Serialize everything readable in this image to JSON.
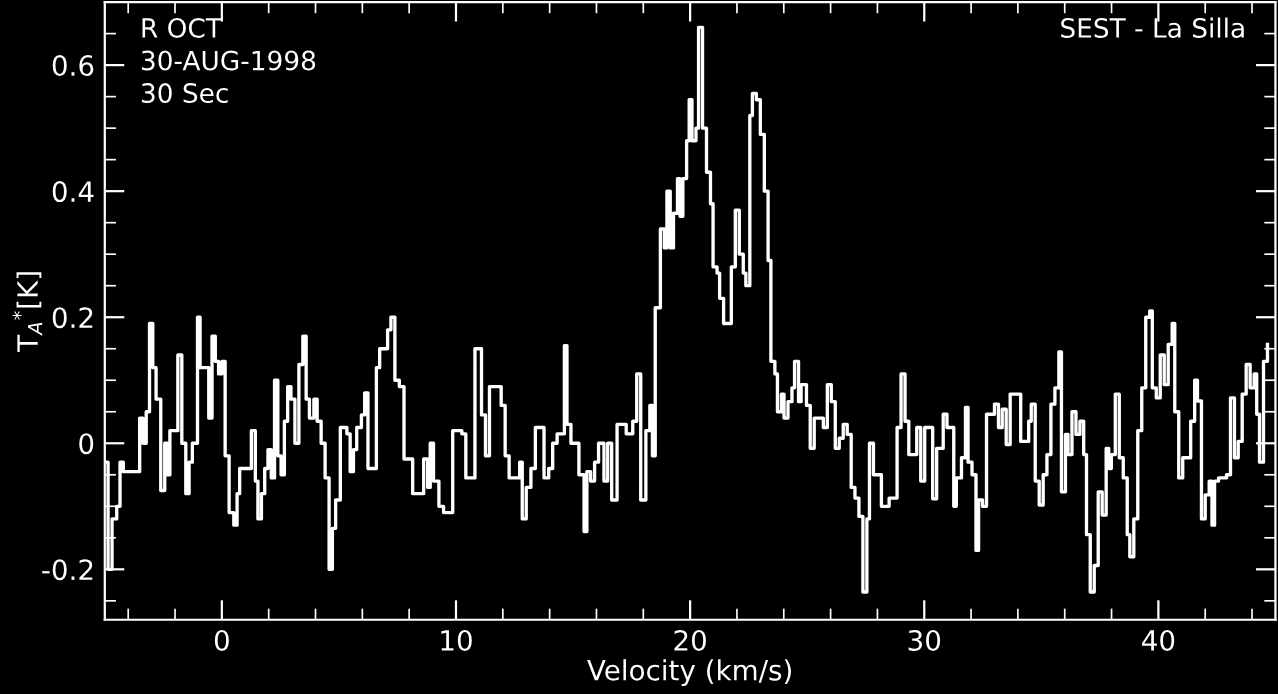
{
  "chart_data": {
    "type": "step",
    "xlabel": "Velocity (km/s)",
    "ylabel": "T$_{A}$$^{*}$[K]",
    "annotations": [
      "R OCT\n30-AUG-1998\n30 Sec",
      "SEST - La Silla"
    ],
    "xlim": [
      -5,
      45
    ],
    "ylim": [
      -0.28,
      0.7
    ],
    "xticks": [
      0,
      10,
      20,
      30,
      40
    ],
    "yticks": [
      -0.2,
      0,
      0.2,
      0.4,
      0.6
    ],
    "grid": false,
    "series": [
      {
        "color": "#ffffff",
        "x": [
          -4.97,
          -4.86,
          -4.69,
          -4.49,
          -4.35,
          -4.21,
          -3.51,
          -3.37,
          -3.23,
          -3.09,
          -2.95,
          -2.81,
          -2.61,
          -2.44,
          -2.33,
          -2.22,
          -1.88,
          -1.71,
          -1.54,
          -1.4,
          -1.26,
          -1.04,
          -0.93,
          -0.56,
          -0.42,
          -0.28,
          -0.14,
          0,
          0.14,
          0.31,
          0.51,
          0.65,
          0.76,
          1.26,
          1.43,
          1.54,
          1.69,
          1.83,
          1.97,
          2.11,
          2.25,
          2.39,
          2.53,
          2.67,
          2.81,
          2.95,
          3.12,
          3.29,
          3.46,
          3.6,
          3.74,
          3.93,
          4.07,
          4.24,
          4.41,
          4.58,
          4.72,
          4.86,
          5.06,
          5.34,
          5.48,
          5.62,
          5.76,
          5.96,
          6.1,
          6.24,
          6.6,
          6.74,
          7.08,
          7.22,
          7.39,
          7.58,
          7.78,
          8.15,
          8.48,
          8.62,
          8.79,
          8.9,
          9.04,
          9.27,
          9.47,
          9.69,
          9.86,
          10.25,
          10.42,
          10.81,
          11.09,
          11.26,
          11.43,
          11.93,
          12.1,
          12.27,
          12.72,
          12.83,
          13.0,
          13.2,
          13.39,
          13.76,
          13.96,
          14.13,
          14.32,
          14.63,
          14.74,
          14.91,
          15.25,
          15.47,
          15.59,
          15.75,
          15.92,
          16.09,
          16.32,
          16.48,
          16.65,
          16.88,
          17.27,
          17.55,
          17.72,
          17.89,
          18.11,
          18.28,
          18.39,
          18.51,
          18.73,
          18.9,
          19.01,
          19.15,
          19.29,
          19.46,
          19.57,
          19.69,
          19.85,
          19.96,
          20.08,
          20.25,
          20.36,
          20.53,
          20.7,
          20.87,
          20.98,
          21.15,
          21.26,
          21.43,
          21.76,
          21.93,
          22.1,
          22.27,
          22.38,
          22.55,
          22.66,
          22.83,
          23.0,
          23.17,
          23.33,
          23.45,
          23.62,
          23.73,
          23.9,
          24.01,
          24.18,
          24.35,
          24.46,
          24.63,
          24.74,
          24.97,
          25.13,
          25.3,
          25.69,
          25.86,
          26.03,
          26.2,
          26.37,
          26.54,
          26.71,
          26.88,
          27.04,
          27.21,
          27.38,
          27.55,
          27.66,
          27.83,
          28.17,
          28.5,
          28.84,
          29.01,
          29.18,
          29.34,
          29.68,
          29.85,
          30.02,
          30.36,
          30.53,
          30.81,
          30.97,
          31.26,
          31.37,
          31.59,
          31.76,
          31.87,
          32.04,
          32.21,
          32.32,
          32.49,
          32.66,
          33.0,
          33.17,
          33.33,
          33.5,
          33.67,
          34.01,
          34.12,
          34.46,
          34.57,
          34.74,
          34.91,
          35.08,
          35.24,
          35.41,
          35.58,
          35.75,
          35.86,
          36.03,
          36.14,
          36.31,
          36.48,
          36.65,
          36.81,
          36.93,
          37.09,
          37.26,
          37.43,
          37.6,
          37.77,
          37.88,
          37.99,
          38.16,
          38.33,
          38.5,
          38.67,
          38.78,
          38.95,
          39.12,
          39.29,
          39.46,
          39.63,
          39.74,
          39.91,
          40.08,
          40.25,
          40.42,
          40.59,
          40.7,
          40.87,
          41.04,
          41.38,
          41.55,
          41.67,
          41.84,
          42.0,
          42.17,
          42.29,
          42.4,
          42.57,
          42.91,
          43.08,
          43.25,
          43.41,
          43.58,
          43.75,
          43.92,
          44.09,
          44.2,
          44.32,
          44.49,
          44.66
        ],
        "values": [
          -0.03,
          -0.2,
          -0.12,
          -0.1,
          -0.03,
          -0.045,
          0.04,
          0,
          0.05,
          0.19,
          0.12,
          0.07,
          -0.075,
          0,
          -0.05,
          0.02,
          0.14,
          0,
          -0.08,
          -0.03,
          0,
          0.2,
          0.12,
          0.04,
          0.17,
          0.13,
          0.11,
          0.13,
          -0.02,
          -0.11,
          -0.13,
          -0.08,
          -0.04,
          0.02,
          -0.06,
          -0.12,
          -0.08,
          -0.04,
          -0.01,
          -0.055,
          0.1,
          -0.02,
          -0.05,
          0.035,
          0.09,
          0.07,
          0,
          0.125,
          0.17,
          0.07,
          0.04,
          0.07,
          0.035,
          0,
          -0.055,
          -0.2,
          -0.135,
          -0.09,
          0.025,
          0.015,
          -0.045,
          -0.01,
          0.025,
          0.045,
          0.08,
          -0.04,
          0.12,
          0.15,
          0.18,
          0.2,
          0.1,
          0.09,
          -0.025,
          -0.08,
          -0.08,
          -0.025,
          -0.07,
          0,
          -0.06,
          -0.1,
          -0.11,
          -0.11,
          0.02,
          0.015,
          -0.055,
          0.15,
          0.045,
          -0.02,
          0.09,
          0.06,
          -0.02,
          -0.055,
          -0.03,
          -0.12,
          -0.07,
          -0.04,
          0.025,
          -0.055,
          -0.04,
          0,
          0.015,
          0.155,
          0.03,
          0,
          -0.05,
          -0.14,
          -0.045,
          -0.06,
          -0.03,
          0,
          -0.06,
          0,
          -0.09,
          0.03,
          0.015,
          0.035,
          0.11,
          -0.09,
          0.02,
          0.06,
          -0.02,
          0.215,
          0.34,
          0.31,
          0.4,
          0.31,
          0.365,
          0.42,
          0.36,
          0.42,
          0.48,
          0.545,
          0.48,
          0.5,
          0.66,
          0.5,
          0.43,
          0.38,
          0.28,
          0.27,
          0.23,
          0.19,
          0.28,
          0.37,
          0.3,
          0.27,
          0.25,
          0.52,
          0.555,
          0.545,
          0.49,
          0.4,
          0.29,
          0.13,
          0.11,
          0.05,
          0.078,
          0.04,
          0.066,
          0.088,
          0.13,
          0.066,
          0.093,
          0.06,
          -0.008,
          0.04,
          0.025,
          0.093,
          0.066,
          -0.008,
          0.008,
          0.03,
          0.014,
          -0.07,
          -0.087,
          -0.116,
          -0.236,
          -0.12,
          0,
          -0.05,
          -0.1,
          -0.087,
          0.025,
          0.11,
          0.035,
          -0.018,
          0.025,
          -0.06,
          0.025,
          -0.088,
          -0.008,
          0.046,
          0.025,
          -0.1,
          -0.055,
          -0.023,
          0.057,
          -0.03,
          -0.05,
          -0.17,
          -0.09,
          -0.1,
          0.046,
          0.062,
          0.025,
          0.054,
          -0.002,
          0.078,
          0.078,
          0.003,
          0.035,
          0.062,
          -0.06,
          -0.098,
          -0.05,
          -0.018,
          0.062,
          0.088,
          0.145,
          -0.077,
          0.014,
          -0.018,
          0.05,
          0.014,
          0.035,
          -0.018,
          -0.145,
          -0.236,
          -0.194,
          -0.077,
          -0.114,
          -0.008,
          -0.04,
          -0.018,
          0.078,
          -0.023,
          -0.055,
          -0.145,
          -0.18,
          -0.12,
          0.02,
          0.088,
          0.2,
          0.21,
          0.088,
          0.072,
          0.14,
          0.093,
          0.157,
          0.19,
          0.05,
          -0.055,
          -0.023,
          0.035,
          0.1,
          0.067,
          -0.12,
          -0.082,
          -0.06,
          -0.13,
          -0.06,
          -0.055,
          -0.05,
          0.072,
          -0.023,
          0.003,
          0.078,
          0.125,
          0.088,
          0.11,
          0.046,
          -0.03,
          0.13,
          0.157
        ]
      }
    ]
  }
}
